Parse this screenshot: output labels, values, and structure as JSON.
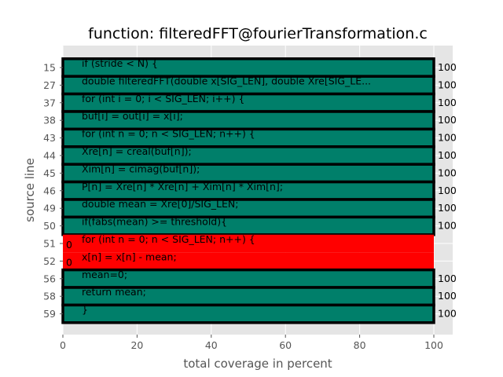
{
  "chart_data": {
    "type": "bar",
    "orientation": "horizontal",
    "title": "function: filteredFFT@fourierTransformation.c",
    "xlabel": "total coverage in percent",
    "ylabel": "source line",
    "xlim": [
      0,
      105
    ],
    "xticks": [
      0,
      20,
      40,
      60,
      80,
      100
    ],
    "grid": true,
    "colors": {
      "covered": "#007f6a",
      "uncovered": "#ff0000",
      "edge": "#000000",
      "plot_bg": "#e5e5e5"
    },
    "rows": [
      {
        "line": "15",
        "code": "if (stride < N) {",
        "value": 100
      },
      {
        "line": "27",
        "code": "double filteredFFT(double x[SIG_LEN], double Xre[SIG_LE...",
        "value": 100
      },
      {
        "line": "37",
        "code": "for (int i = 0; i < SIG_LEN; i++) {",
        "value": 100
      },
      {
        "line": "38",
        "code": "buf[i] = out[i] = x[i];",
        "value": 100
      },
      {
        "line": "43",
        "code": "for (int n = 0; n < SIG_LEN; n++) {",
        "value": 100
      },
      {
        "line": "44",
        "code": "Xre[n] = creal(buf[n]);",
        "value": 100
      },
      {
        "line": "45",
        "code": "Xim[n] = cimag(buf[n]);",
        "value": 100
      },
      {
        "line": "46",
        "code": "P[n] = Xre[n] * Xre[n] + Xim[n] * Xim[n];",
        "value": 100
      },
      {
        "line": "49",
        "code": "double mean =  Xre[0]/SIG_LEN;",
        "value": 100
      },
      {
        "line": "50",
        "code": "if(fabs(mean) >= threshold){",
        "value": 100
      },
      {
        "line": "51",
        "code": "for (int n = 0; n < SIG_LEN; n++) {",
        "value": 0
      },
      {
        "line": "52",
        "code": "x[n] = x[n] - mean;",
        "value": 0
      },
      {
        "line": "56",
        "code": "mean=0;",
        "value": 100
      },
      {
        "line": "58",
        "code": "return mean;",
        "value": 100
      },
      {
        "line": "59",
        "code": "}",
        "value": 100
      }
    ]
  }
}
